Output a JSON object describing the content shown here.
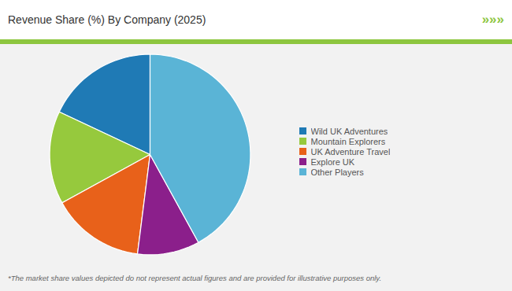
{
  "chart_data": {
    "type": "pie",
    "title": "Revenue Share (%) By Company (2025)",
    "categories": [
      "Wild UK Adventures",
      "Mountain Explorers",
      "UK Adventure Travel",
      "Explore UK",
      "Other Players"
    ],
    "values": [
      18,
      15,
      15,
      10,
      42
    ],
    "colors": [
      "#1f7ab5",
      "#96c93d",
      "#e8611a",
      "#8b1f8b",
      "#5ab4d6"
    ],
    "legend": "right",
    "annotations": [
      "»»»",
      "*The market share values depicted do not represent actual figures and are provided for illustrative purposes only."
    ]
  }
}
